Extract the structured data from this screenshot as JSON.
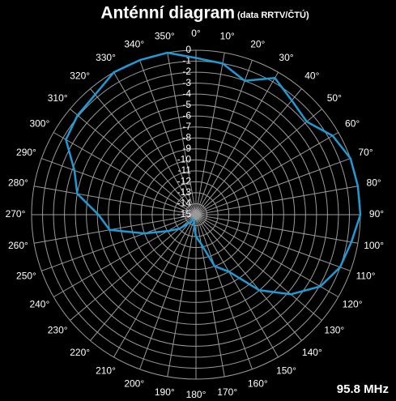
{
  "chart_data": {
    "type": "polar",
    "title": "Anténní diagram",
    "subtitle": "(data RRTV/ČTÚ)",
    "footer": "95.8 MHz",
    "categories": [
      "0°",
      "10°",
      "20°",
      "30°",
      "40°",
      "50°",
      "60°",
      "70°",
      "80°",
      "90°",
      "100°",
      "110°",
      "120°",
      "130°",
      "140°",
      "150°",
      "160°",
      "170°",
      "180°",
      "190°",
      "200°",
      "210°",
      "220°",
      "230°",
      "240°",
      "250°",
      "260°",
      "270°",
      "280°",
      "290°",
      "300°",
      "310°",
      "320°",
      "330°",
      "340°",
      "350°"
    ],
    "values": [
      -0.7,
      -1,
      -2,
      -0.6,
      -1.4,
      -1.8,
      -0.6,
      0,
      0,
      0,
      -0.6,
      -1,
      -1.9,
      -3.7,
      -6,
      -9,
      -10,
      -12.3,
      -13,
      -14,
      -14.5,
      -14.5,
      -14,
      -13,
      -12,
      -10,
      -7,
      -6.1,
      -4,
      -3.2,
      -1.3,
      -0.9,
      -0.7,
      0,
      0,
      0
    ],
    "color": "#1e9bd7",
    "rlim": [
      -15,
      0
    ],
    "rticks": [
      0,
      -1,
      -2,
      -3,
      -4,
      -5,
      -6,
      -7,
      -8,
      -9,
      -10,
      -11,
      -12,
      -13,
      -14,
      -15
    ],
    "grid": true
  }
}
